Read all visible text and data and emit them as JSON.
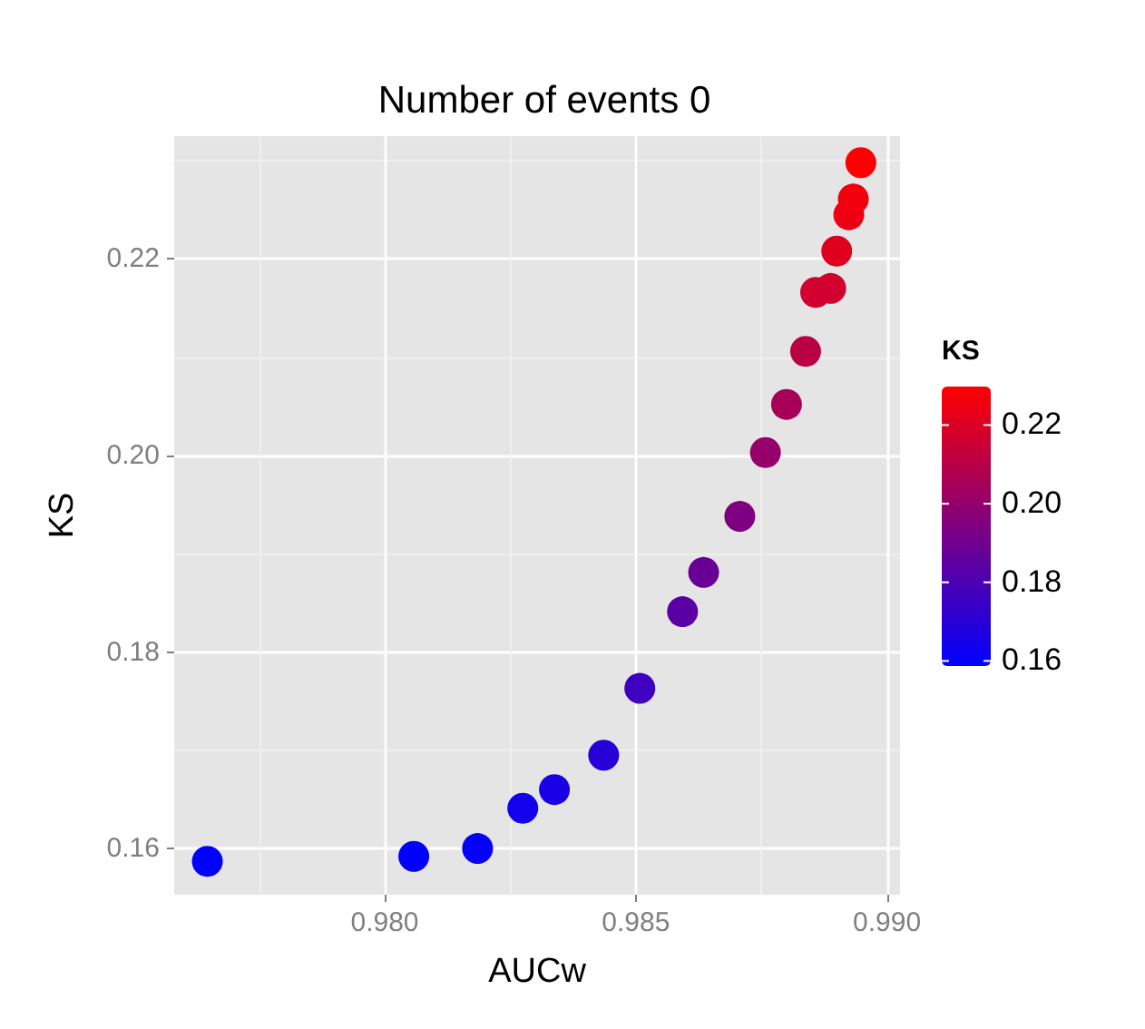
{
  "chart_data": {
    "type": "scatter",
    "title": "Number of events 0",
    "xlabel": "AUCw",
    "ylabel": "KS",
    "clabel": "KS",
    "x": [
      0.97647,
      0.98058,
      0.98185,
      0.98275,
      0.98338,
      0.98436,
      0.98508,
      0.98593,
      0.98635,
      0.98707,
      0.98758,
      0.988,
      0.98838,
      0.98858,
      0.98888,
      0.989,
      0.98924,
      0.98933,
      0.98948
    ],
    "values": [
      0.1587,
      0.1592,
      0.16,
      0.1641,
      0.166,
      0.1695,
      0.1763,
      0.1841,
      0.1881,
      0.1938,
      0.2003,
      0.2052,
      0.2106,
      0.2166,
      0.217,
      0.2208,
      0.2245,
      0.2261,
      0.2298
    ],
    "cvalues": [
      0.1587,
      0.1592,
      0.16,
      0.1641,
      0.166,
      0.1695,
      0.1763,
      0.1841,
      0.1881,
      0.1938,
      0.2003,
      0.2052,
      0.2106,
      0.2166,
      0.217,
      0.2208,
      0.2245,
      0.2261,
      0.2298
    ],
    "clim": [
      0.1587,
      0.2298
    ],
    "cticks": [
      {
        "value": 0.16,
        "label": "0.16"
      },
      {
        "value": 0.18,
        "label": "0.18"
      },
      {
        "value": 0.2,
        "label": "0.20"
      },
      {
        "value": 0.22,
        "label": "0.22"
      }
    ],
    "xlim": [
      0.97581,
      0.99026
    ],
    "xticks": [
      {
        "value": 0.98,
        "label": "0.980"
      },
      {
        "value": 0.985,
        "label": "0.985"
      },
      {
        "value": 0.99,
        "label": "0.990"
      }
    ],
    "ylim": [
      0.1553,
      0.2325
    ],
    "yticks": [
      {
        "value": 0.16,
        "label": "0.16"
      },
      {
        "value": 0.18,
        "label": "0.18"
      },
      {
        "value": 0.2,
        "label": "0.20"
      },
      {
        "value": 0.22,
        "label": "0.22"
      }
    ],
    "grid": true,
    "marker": "circle"
  }
}
